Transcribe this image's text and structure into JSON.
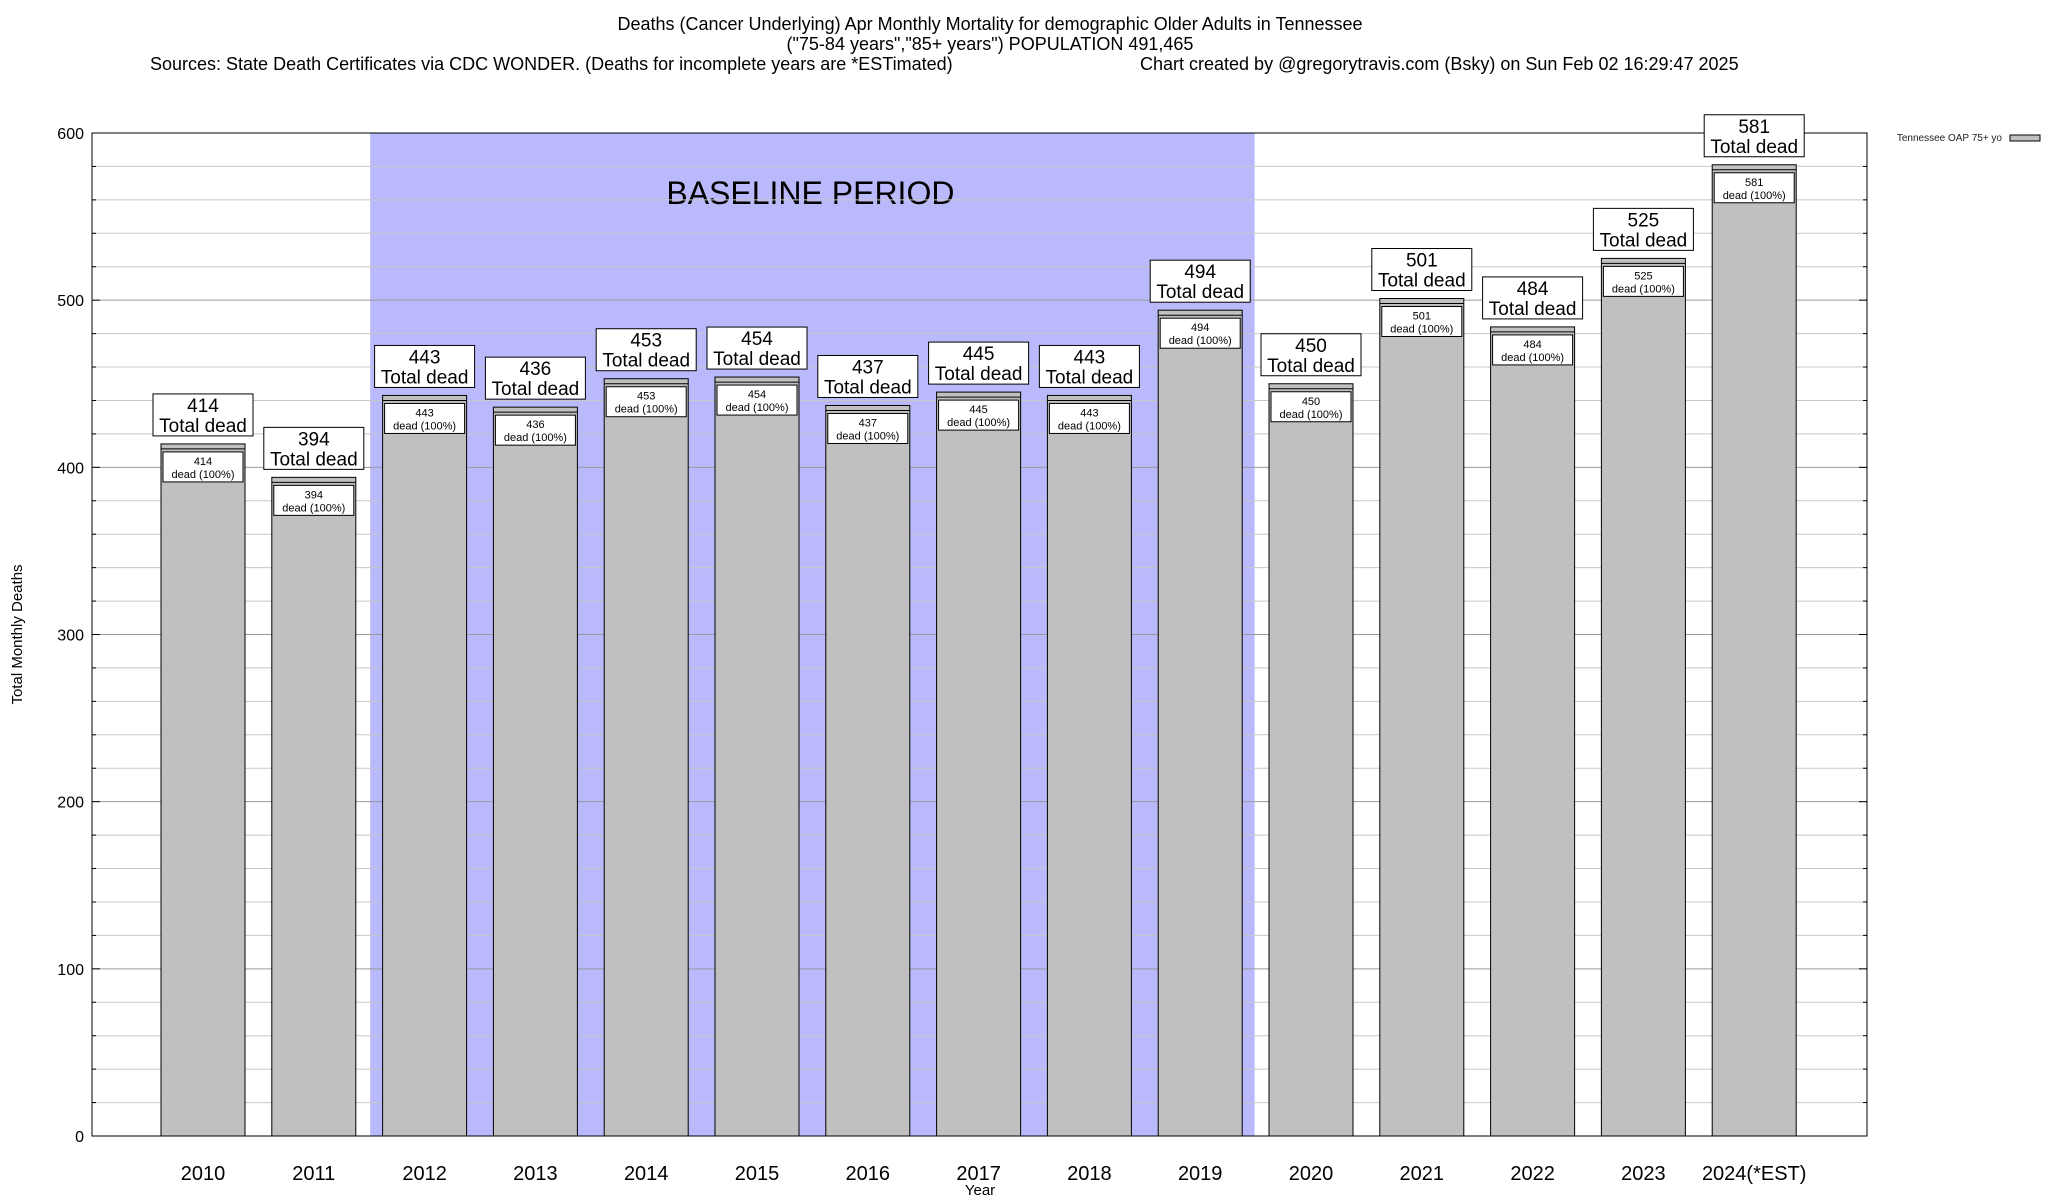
{
  "chart_data": {
    "type": "bar",
    "title": "Deaths (Cancer Underlying) Apr Monthly Mortality for demographic Older Adults in Tennessee",
    "subtitle": "(\"75-84 years\",\"85+ years\") POPULATION 491,465",
    "sources": "Sources: State Death Certificates via CDC WONDER. (Deaths for incomplete years are *ESTimated)",
    "credit": "Chart created by @gregorytravis.com (Bsky) on Sun Feb 02 16:29:47 2025",
    "xlabel": "Year",
    "ylabel": "Total Monthly Deaths",
    "ylim": [
      0,
      600
    ],
    "yticks": [
      0,
      100,
      200,
      300,
      400,
      500,
      600
    ],
    "categories": [
      "2010",
      "2011",
      "2012",
      "2013",
      "2014",
      "2015",
      "2016",
      "2017",
      "2018",
      "2019",
      "2020",
      "2021",
      "2022",
      "2023",
      "2024(*EST)"
    ],
    "series": [
      {
        "name": "Tennessee OAP 75+ yo",
        "values": [
          414,
          394,
          443,
          436,
          453,
          454,
          437,
          445,
          443,
          494,
          450,
          501,
          484,
          525,
          581
        ]
      }
    ],
    "total_label_suffix": "Total dead",
    "inner_label_suffix": "dead (100%)",
    "baseline": {
      "label": "BASELINE PERIOD",
      "from": "2012",
      "to": "2019",
      "color": "#b9b9fb"
    },
    "bar_color": "#c0c0c0",
    "grid": true,
    "legend_position": "top-right"
  }
}
